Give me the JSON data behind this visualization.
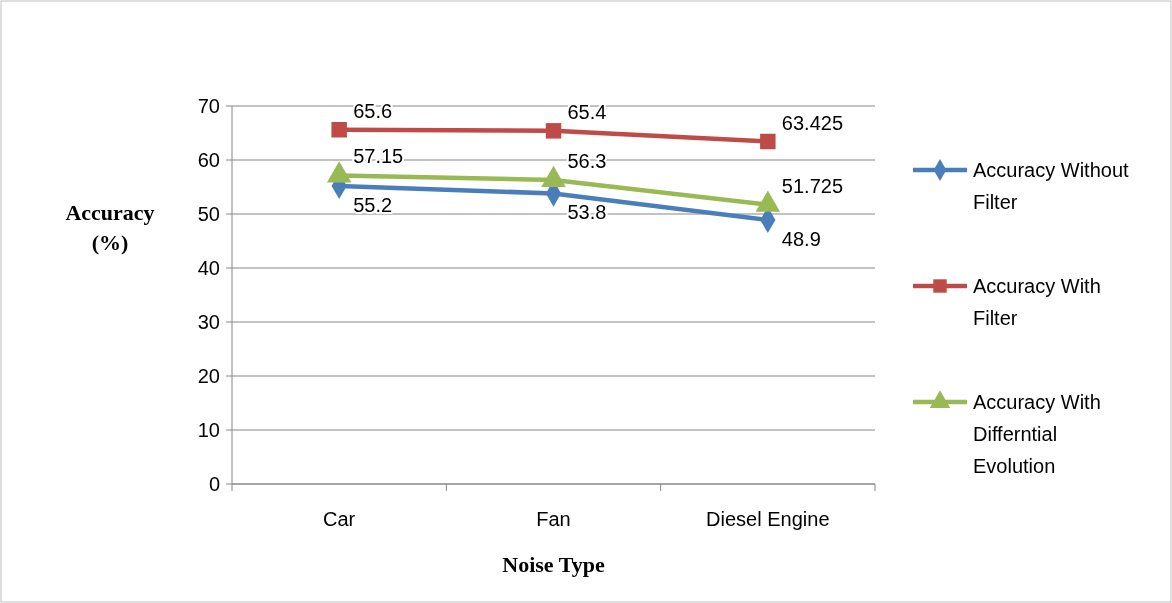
{
  "chart_data": {
    "type": "line",
    "xlabel": "Noise Type",
    "ylabel": "Accuracy (%)",
    "categories": [
      "Car",
      "Fan",
      "Diesel Engine"
    ],
    "series": [
      {
        "name": "Accuracy Without Filter",
        "color": "#4a7ebb",
        "marker": "diamond",
        "values": [
          55.2,
          53.8,
          48.9
        ]
      },
      {
        "name": "Accuracy With Filter",
        "color": "#be4b48",
        "marker": "square",
        "values": [
          65.6,
          65.4,
          63.425
        ]
      },
      {
        "name": "Accuracy With Differntial Evolution",
        "color": "#98b954",
        "marker": "triangle",
        "values": [
          57.15,
          56.3,
          51.725
        ]
      }
    ],
    "ylim": [
      0,
      70
    ],
    "yticks": [
      0,
      10,
      20,
      30,
      40,
      50,
      60,
      70
    ],
    "grid": "y",
    "legend": "right",
    "data_labels": true
  }
}
